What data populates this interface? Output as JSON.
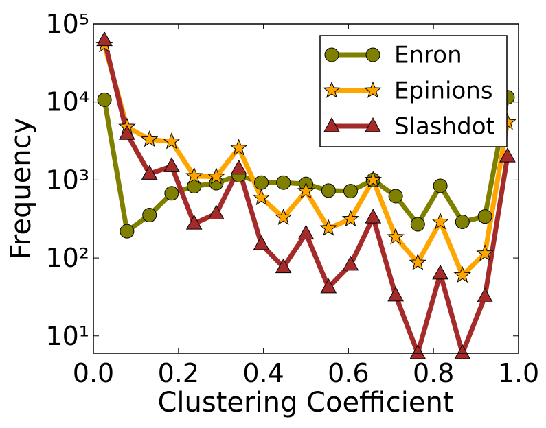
{
  "chart_data": {
    "type": "line",
    "xlabel": "Clustering Coefficient",
    "ylabel": "Frequency",
    "x": [
      0.026,
      0.079,
      0.132,
      0.184,
      0.237,
      0.289,
      0.342,
      0.395,
      0.447,
      0.5,
      0.553,
      0.605,
      0.658,
      0.711,
      0.763,
      0.816,
      0.868,
      0.921,
      0.974
    ],
    "series": [
      {
        "name": "Enron",
        "color": "#808000",
        "marker": "circle",
        "values": [
          10700,
          220,
          355,
          675,
          830,
          910,
          1150,
          925,
          925,
          890,
          730,
          720,
          1000,
          620,
          270,
          840,
          290,
          340,
          11500
        ]
      },
      {
        "name": "Epinions",
        "color": "#ffa500",
        "marker": "star",
        "values": [
          54000,
          4800,
          3300,
          3100,
          1120,
          1100,
          2570,
          590,
          330,
          720,
          240,
          315,
          1000,
          185,
          87,
          290,
          60,
          114,
          5500
        ]
      },
      {
        "name": "Slashdot",
        "color": "#a52a2a",
        "marker": "triangle",
        "values": [
          62000,
          3900,
          1200,
          1500,
          275,
          370,
          1400,
          150,
          76,
          205,
          42,
          82,
          330,
          33,
          6,
          63,
          6,
          32,
          2000
        ]
      }
    ],
    "xlim": [
      0.0,
      1.0
    ],
    "xticks": [
      {
        "value": 0.0,
        "label": "0.0"
      },
      {
        "value": 0.2,
        "label": "0.2"
      },
      {
        "value": 0.4,
        "label": "0.4"
      },
      {
        "value": 0.6,
        "label": "0.6"
      },
      {
        "value": 0.8,
        "label": "0.8"
      },
      {
        "value": 1.0,
        "label": "1.0"
      }
    ],
    "ylim": [
      6,
      100000
    ],
    "yscale": "log",
    "yticks": [
      {
        "value": 10,
        "label": "10¹"
      },
      {
        "value": 100,
        "label": "10²"
      },
      {
        "value": 1000,
        "label": "10³"
      },
      {
        "value": 10000,
        "label": "10⁴"
      },
      {
        "value": 100000,
        "label": "10⁵"
      }
    ],
    "legend": "upper right"
  }
}
